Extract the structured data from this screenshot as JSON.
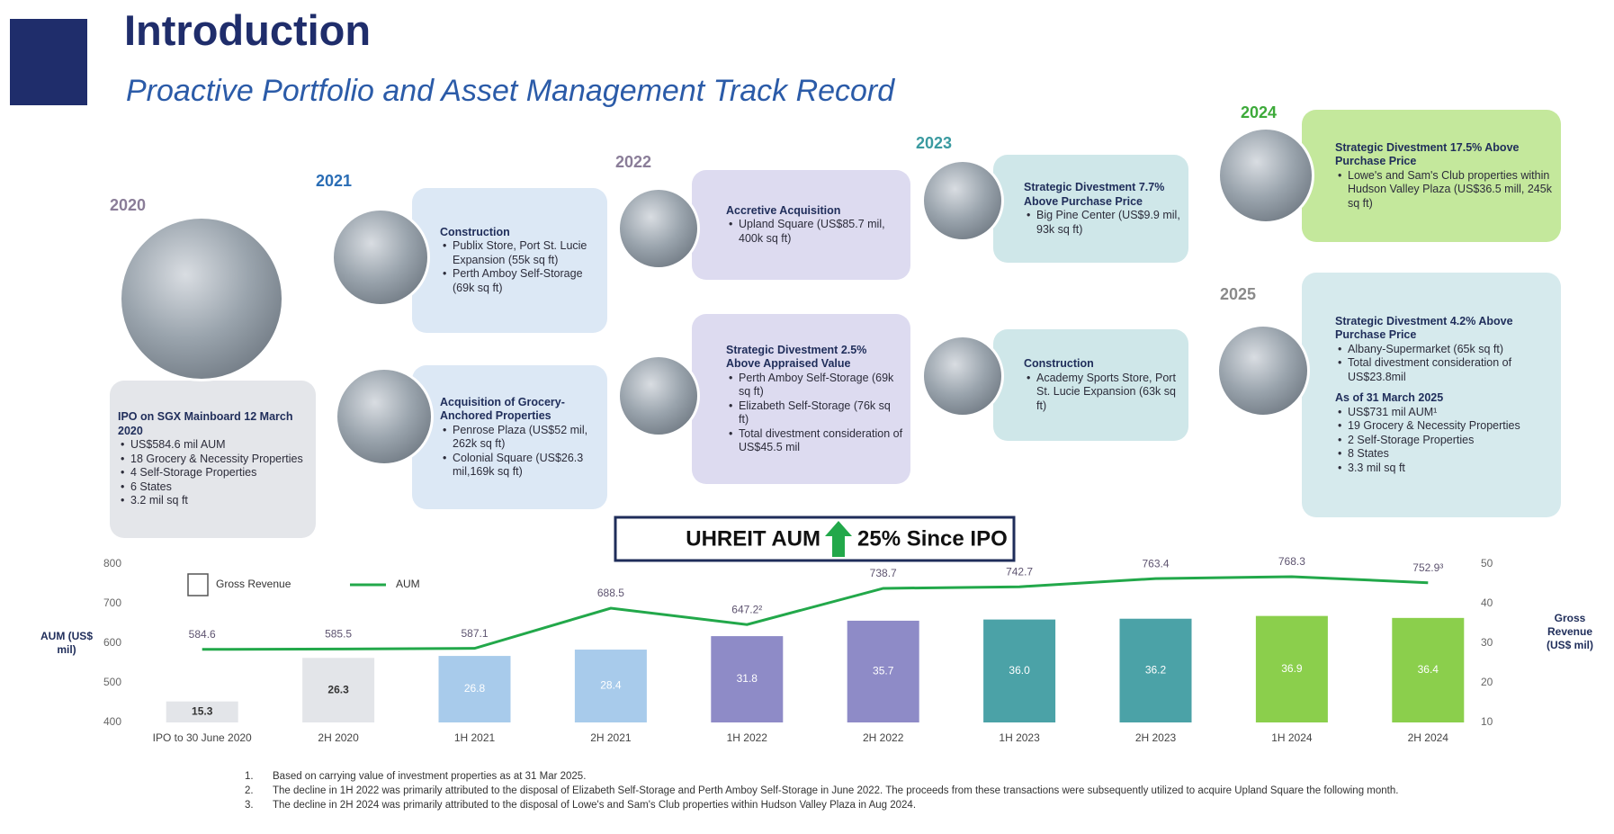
{
  "header": {
    "title": "Introduction",
    "subtitle": "Proactive Portfolio and Asset Management Track Record"
  },
  "timeline": [
    {
      "year": "2020",
      "boxes": [
        {
          "sections": [
            {
              "heading": "IPO on SGX Mainboard 12 March 2020",
              "bullets": [
                "US$584.6 mil AUM",
                "18 Grocery & Necessity Properties",
                "4 Self-Storage Properties",
                "6 States",
                "3.2 mil sq ft"
              ]
            }
          ]
        }
      ]
    },
    {
      "year": "2021",
      "boxes": [
        {
          "sections": [
            {
              "heading": "Construction",
              "bullets": [
                "Publix Store, Port St. Lucie Expansion (55k sq ft)",
                "Perth Amboy Self-Storage (69k sq ft)"
              ]
            }
          ]
        },
        {
          "sections": [
            {
              "heading": "Acquisition of Grocery-Anchored Properties",
              "bullets": [
                "Penrose Plaza (US$52 mil, 262k sq ft)",
                "Colonial Square (US$26.3 mil,169k sq ft)"
              ]
            }
          ]
        }
      ]
    },
    {
      "year": "2022",
      "boxes": [
        {
          "sections": [
            {
              "heading": "Accretive Acquisition",
              "bullets": [
                "Upland Square (US$85.7 mil, 400k sq ft)"
              ]
            }
          ]
        },
        {
          "sections": [
            {
              "heading": "Strategic Divestment 2.5% Above Appraised Value",
              "bullets": [
                "Perth Amboy Self-Storage (69k sq ft)",
                "Elizabeth Self-Storage (76k sq ft)",
                "Total divestment consideration of US$45.5 mil"
              ]
            }
          ]
        }
      ]
    },
    {
      "year": "2023",
      "boxes": [
        {
          "sections": [
            {
              "heading": "Strategic Divestment 7.7% Above Purchase Price",
              "bullets": [
                "Big Pine Center (US$9.9 mil, 93k sq ft)"
              ]
            }
          ]
        },
        {
          "sections": [
            {
              "heading": "Construction",
              "bullets": [
                "Academy Sports Store, Port St. Lucie Expansion (63k sq ft)"
              ]
            }
          ]
        }
      ]
    },
    {
      "year": "2024",
      "boxes": [
        {
          "sections": [
            {
              "heading": "Strategic Divestment 17.5% Above Purchase Price",
              "bullets": [
                "Lowe's and Sam's Club properties within Hudson Valley Plaza (US$36.5 mill, 245k sq ft)"
              ]
            }
          ]
        }
      ]
    },
    {
      "year": "2025",
      "boxes": [
        {
          "sections": [
            {
              "heading": "Strategic Divestment 4.2% Above Purchase Price",
              "bullets": [
                "Albany-Supermarket (65k sq ft)",
                "Total divestment consideration of US$23.8mil"
              ]
            },
            {
              "heading": "As of 31 March 2025",
              "bullets": [
                "US$731 mil AUM¹",
                "19 Grocery & Necessity Properties",
                "2 Self-Storage Properties",
                "8 States",
                "3.3 mil sq ft"
              ]
            }
          ]
        }
      ]
    }
  ],
  "banner": {
    "left": "UHREIT AUM",
    "right": "25% Since IPO"
  },
  "chart_data": {
    "type": "combo",
    "categories": [
      "IPO to 30 June 2020",
      "2H 2020",
      "1H 2021",
      "2H 2021",
      "1H 2022",
      "2H 2022",
      "1H 2023",
      "2H 2023",
      "1H 2024",
      "2H 2024"
    ],
    "ylabel": "AUM (US$ mil)",
    "y2label": "Gross Revenue (US$ mil)",
    "ylim": [
      400,
      800
    ],
    "yticks": [
      400,
      500,
      600,
      700,
      800
    ],
    "y2lim": [
      10,
      50
    ],
    "y2ticks": [
      10,
      20,
      30,
      40,
      50
    ],
    "series": [
      {
        "name": "Gross Revenue",
        "type": "bar",
        "axis": "y2",
        "colors": [
          "#e3e5e9",
          "#e3e5e9",
          "#a8cbeb",
          "#a8cbeb",
          "#8e8bc7",
          "#8e8bc7",
          "#4ba2a7",
          "#4ba2a7",
          "#8bcf4c",
          "#8bcf4c"
        ],
        "values": [
          15.3,
          26.3,
          26.8,
          28.4,
          31.8,
          35.7,
          36.0,
          36.2,
          36.9,
          36.4
        ],
        "value_labels": [
          "15.3",
          "26.3",
          "26.8",
          "28.4",
          "31.8",
          "35.7",
          "36.0",
          "36.2",
          "36.9",
          "36.4"
        ]
      },
      {
        "name": "AUM",
        "type": "line",
        "color": "#22a84a",
        "values": [
          584.6,
          585.5,
          587.1,
          688.5,
          647.2,
          738.7,
          742.7,
          763.4,
          768.3,
          752.9
        ],
        "value_labels": [
          "584.6",
          "585.5",
          "587.1",
          "688.5",
          "647.2²",
          "738.7",
          "742.7",
          "763.4",
          "768.3",
          "752.9³"
        ]
      }
    ]
  },
  "footnotes": [
    {
      "number": "1.",
      "text": "Based on carrying value of investment properties as at 31 Mar 2025."
    },
    {
      "number": "2.",
      "text": "The decline in 1H 2022 was primarily attributed to the disposal of Elizabeth Self-Storage and Perth Amboy Self-Storage in June 2022. The proceeds from these transactions were subsequently utilized to acquire Upland Square the following month."
    },
    {
      "number": "3.",
      "text": "The decline in 2H 2024 was primarily attributed to the disposal of Lowe's and Sam's Club properties within Hudson Valley Plaza in Aug 2024."
    }
  ]
}
